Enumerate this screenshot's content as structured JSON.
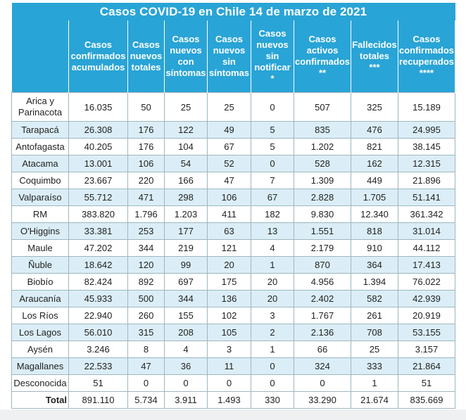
{
  "title": "Casos COVID-19 en Chile 14 de marzo de 2021",
  "headers": [
    [
      "Casos",
      "confirmados",
      "acumulados"
    ],
    [
      "Casos",
      "nuevos",
      "totales"
    ],
    [
      "Casos",
      "nuevos",
      "con",
      "síntomas"
    ],
    [
      "Casos",
      "nuevos",
      "sin",
      "síntomas"
    ],
    [
      "Casos",
      "nuevos",
      "sin",
      "notificar",
      "*"
    ],
    [
      "Casos",
      "activos",
      "confirmados",
      "**"
    ],
    [
      "Fallecidos",
      "totales",
      "***"
    ],
    [
      "Casos",
      "confirmados",
      "recuperados",
      "****"
    ]
  ],
  "rows": [
    {
      "region": [
        "Arica y",
        "Parinacota"
      ],
      "values": [
        "16.035",
        "50",
        "25",
        "25",
        "0",
        "507",
        "325",
        "15.189"
      ]
    },
    {
      "region": [
        "Tarapacá"
      ],
      "values": [
        "26.308",
        "176",
        "122",
        "49",
        "5",
        "835",
        "476",
        "24.995"
      ]
    },
    {
      "region": [
        "Antofagasta"
      ],
      "values": [
        "40.205",
        "176",
        "104",
        "67",
        "5",
        "1.202",
        "821",
        "38.145"
      ]
    },
    {
      "region": [
        "Atacama"
      ],
      "values": [
        "13.001",
        "106",
        "54",
        "52",
        "0",
        "528",
        "162",
        "12.315"
      ]
    },
    {
      "region": [
        "Coquimbo"
      ],
      "values": [
        "23.667",
        "220",
        "166",
        "47",
        "7",
        "1.309",
        "449",
        "21.896"
      ]
    },
    {
      "region": [
        "Valparaíso"
      ],
      "values": [
        "55.712",
        "471",
        "298",
        "106",
        "67",
        "2.828",
        "1.705",
        "51.141"
      ]
    },
    {
      "region": [
        "RM"
      ],
      "values": [
        "383.820",
        "1.796",
        "1.203",
        "411",
        "182",
        "9.830",
        "12.340",
        "361.342"
      ]
    },
    {
      "region": [
        "O'Higgins"
      ],
      "values": [
        "33.381",
        "253",
        "177",
        "63",
        "13",
        "1.551",
        "818",
        "31.014"
      ]
    },
    {
      "region": [
        "Maule"
      ],
      "values": [
        "47.202",
        "344",
        "219",
        "121",
        "4",
        "2.179",
        "910",
        "44.112"
      ]
    },
    {
      "region": [
        "Ñuble"
      ],
      "values": [
        "18.642",
        "120",
        "99",
        "20",
        "1",
        "870",
        "364",
        "17.413"
      ]
    },
    {
      "region": [
        "Biobío"
      ],
      "values": [
        "82.424",
        "892",
        "697",
        "175",
        "20",
        "4.956",
        "1.394",
        "76.022"
      ]
    },
    {
      "region": [
        "Araucanía"
      ],
      "values": [
        "45.933",
        "500",
        "344",
        "136",
        "20",
        "2.402",
        "582",
        "42.939"
      ]
    },
    {
      "region": [
        "Los Ríos"
      ],
      "values": [
        "22.940",
        "260",
        "155",
        "102",
        "3",
        "1.767",
        "261",
        "20.919"
      ]
    },
    {
      "region": [
        "Los Lagos"
      ],
      "values": [
        "56.010",
        "315",
        "208",
        "105",
        "2",
        "2.136",
        "708",
        "53.155"
      ]
    },
    {
      "region": [
        "Aysén"
      ],
      "values": [
        "3.246",
        "8",
        "4",
        "3",
        "1",
        "66",
        "25",
        "3.157"
      ]
    },
    {
      "region": [
        "Magallanes"
      ],
      "values": [
        "22.533",
        "47",
        "36",
        "11",
        "0",
        "324",
        "333",
        "21.864"
      ]
    },
    {
      "region": [
        "Desconocida"
      ],
      "values": [
        "51",
        "0",
        "0",
        "0",
        "0",
        "0",
        "1",
        "51"
      ]
    }
  ],
  "total": {
    "label": "Total",
    "values": [
      "891.110",
      "5.734",
      "3.911",
      "1.493",
      "330",
      "33.290",
      "21.674",
      "835.669"
    ]
  },
  "colors": {
    "header_bg": "#29a4d6",
    "stripe": "#dbeef7",
    "border": "#9fb6bf"
  }
}
